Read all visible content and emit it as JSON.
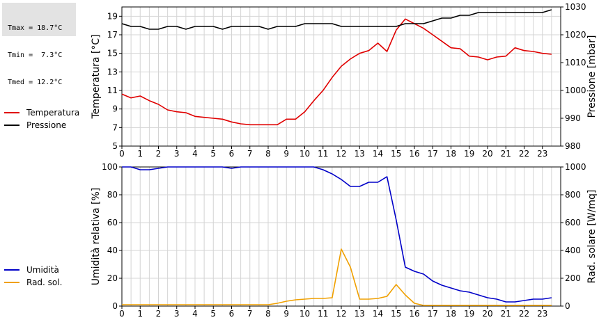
{
  "stats": {
    "tmax": "Tmax = 18.7°C",
    "tmin": "Tmin =  7.3°C",
    "tmed": "Tmed = 12.2°C"
  },
  "chart_data": [
    {
      "type": "line",
      "grid": true,
      "x_ticks": [
        "0",
        "1",
        "2",
        "3",
        "4",
        "5",
        "6",
        "7",
        "8",
        "9",
        "10",
        "11",
        "12",
        "13",
        "14",
        "15",
        "16",
        "17",
        "18",
        "19",
        "20",
        "21",
        "22",
        "23"
      ],
      "x_range": [
        0,
        24
      ],
      "left_axis": {
        "label": "Temperatura [°C]",
        "range": [
          5,
          20
        ],
        "ticks": [
          5,
          7,
          9,
          11,
          13,
          15,
          17,
          19
        ]
      },
      "right_axis": {
        "label": "Pressione [mbar]",
        "range": [
          980,
          1030
        ],
        "ticks": [
          980,
          990,
          1000,
          1010,
          1020,
          1030
        ]
      },
      "series": [
        {
          "name": "Temperatura",
          "axis": "left",
          "color": "#e00000",
          "x": [
            0,
            0.5,
            1,
            1.5,
            2,
            2.5,
            3,
            3.5,
            4,
            4.5,
            5,
            5.5,
            6,
            6.5,
            7,
            7.5,
            8,
            8.5,
            9,
            9.5,
            10,
            10.5,
            11,
            11.5,
            12,
            12.5,
            13,
            13.5,
            14,
            14.5,
            15,
            15.5,
            16,
            16.5,
            17,
            17.5,
            18,
            18.5,
            19,
            19.5,
            20,
            20.5,
            21,
            21.5,
            22,
            22.5,
            23,
            23.5
          ],
          "values": [
            10.6,
            10.2,
            10.4,
            9.9,
            9.5,
            8.9,
            8.7,
            8.6,
            8.2,
            8.1,
            8.0,
            7.9,
            7.6,
            7.4,
            7.3,
            7.3,
            7.3,
            7.3,
            7.9,
            7.9,
            8.7,
            9.9,
            11.0,
            12.4,
            13.6,
            14.4,
            15.0,
            15.3,
            16.1,
            15.2,
            17.5,
            18.7,
            18.2,
            17.7,
            17.0,
            16.3,
            15.6,
            15.5,
            14.7,
            14.6,
            14.3,
            14.6,
            14.7,
            15.6,
            15.3,
            15.2,
            15.0,
            14.9
          ]
        },
        {
          "name": "Pressione",
          "axis": "right",
          "color": "#000000",
          "x": [
            0,
            0.5,
            1,
            1.5,
            2,
            2.5,
            3,
            3.5,
            4,
            4.5,
            5,
            5.5,
            6,
            6.5,
            7,
            7.5,
            8,
            8.5,
            9,
            9.5,
            10,
            10.5,
            11,
            11.5,
            12,
            12.5,
            13,
            13.5,
            14,
            14.5,
            15,
            15.5,
            16,
            16.5,
            17,
            17.5,
            18,
            18.5,
            19,
            19.5,
            20,
            20.5,
            21,
            21.5,
            22,
            22.5,
            23,
            23.5
          ],
          "values": [
            1024,
            1023,
            1023,
            1022,
            1022,
            1023,
            1023,
            1022,
            1023,
            1023,
            1023,
            1022,
            1023,
            1023,
            1023,
            1023,
            1022,
            1023,
            1023,
            1023,
            1024,
            1024,
            1024,
            1024,
            1023,
            1023,
            1023,
            1023,
            1023,
            1023,
            1023,
            1024,
            1024,
            1024,
            1025,
            1026,
            1026,
            1027,
            1027,
            1028,
            1028,
            1028,
            1028,
            1028,
            1028,
            1028,
            1028,
            1029
          ]
        }
      ]
    },
    {
      "type": "line",
      "grid": true,
      "x_ticks": [
        "0",
        "1",
        "2",
        "3",
        "4",
        "5",
        "6",
        "7",
        "8",
        "9",
        "10",
        "11",
        "12",
        "13",
        "14",
        "15",
        "16",
        "17",
        "18",
        "19",
        "20",
        "21",
        "22",
        "23"
      ],
      "x_range": [
        0,
        24
      ],
      "left_axis": {
        "label": "Umidità relativa [%]",
        "range": [
          0,
          100
        ],
        "ticks": [
          0,
          20,
          40,
          60,
          80,
          100
        ]
      },
      "right_axis": {
        "label": "Rad. solare [W/mq]",
        "range": [
          0,
          1000
        ],
        "ticks": [
          0,
          200,
          400,
          600,
          800,
          1000
        ]
      },
      "series": [
        {
          "name": "Umidità",
          "axis": "left",
          "color": "#0000c8",
          "x": [
            0,
            0.5,
            1,
            1.5,
            2,
            2.5,
            3,
            3.5,
            4,
            4.5,
            5,
            5.5,
            6,
            6.5,
            7,
            7.5,
            8,
            8.5,
            9,
            9.5,
            10,
            10.5,
            11,
            11.5,
            12,
            12.5,
            13,
            13.5,
            14,
            14.5,
            15,
            15.5,
            16,
            16.5,
            17,
            17.5,
            18,
            18.5,
            19,
            19.5,
            20,
            20.5,
            21,
            21.5,
            22,
            22.5,
            23,
            23.5
          ],
          "values": [
            100,
            100,
            98,
            98,
            99,
            100,
            100,
            100,
            100,
            100,
            100,
            100,
            99,
            100,
            100,
            100,
            100,
            100,
            100,
            100,
            100,
            100,
            98,
            95,
            91,
            86,
            86,
            89,
            89,
            93,
            62,
            28,
            25,
            23,
            18,
            15,
            13,
            11,
            10,
            8,
            6,
            5,
            3,
            3,
            4,
            5,
            5,
            6
          ]
        },
        {
          "name": "Rad. sol.",
          "axis": "right",
          "color": "#f0a000",
          "x": [
            0,
            0.5,
            1,
            1.5,
            2,
            2.5,
            3,
            3.5,
            4,
            4.5,
            5,
            5.5,
            6,
            6.5,
            7,
            7.5,
            8,
            8.5,
            9,
            9.5,
            10,
            10.5,
            11,
            11.5,
            12,
            12.5,
            13,
            13.5,
            14,
            14.5,
            15,
            15.5,
            16,
            16.5,
            17,
            17.5,
            18,
            18.5,
            19,
            19.5,
            20,
            20.5,
            21,
            21.5,
            22,
            22.5,
            23,
            23.5
          ],
          "values": [
            10,
            10,
            10,
            10,
            10,
            10,
            10,
            10,
            10,
            10,
            10,
            10,
            10,
            10,
            10,
            10,
            10,
            20,
            35,
            45,
            50,
            55,
            55,
            60,
            410,
            280,
            50,
            50,
            55,
            70,
            155,
            80,
            20,
            5,
            5,
            5,
            5,
            5,
            5,
            5,
            5,
            5,
            5,
            5,
            5,
            5,
            5,
            5
          ]
        }
      ]
    }
  ]
}
